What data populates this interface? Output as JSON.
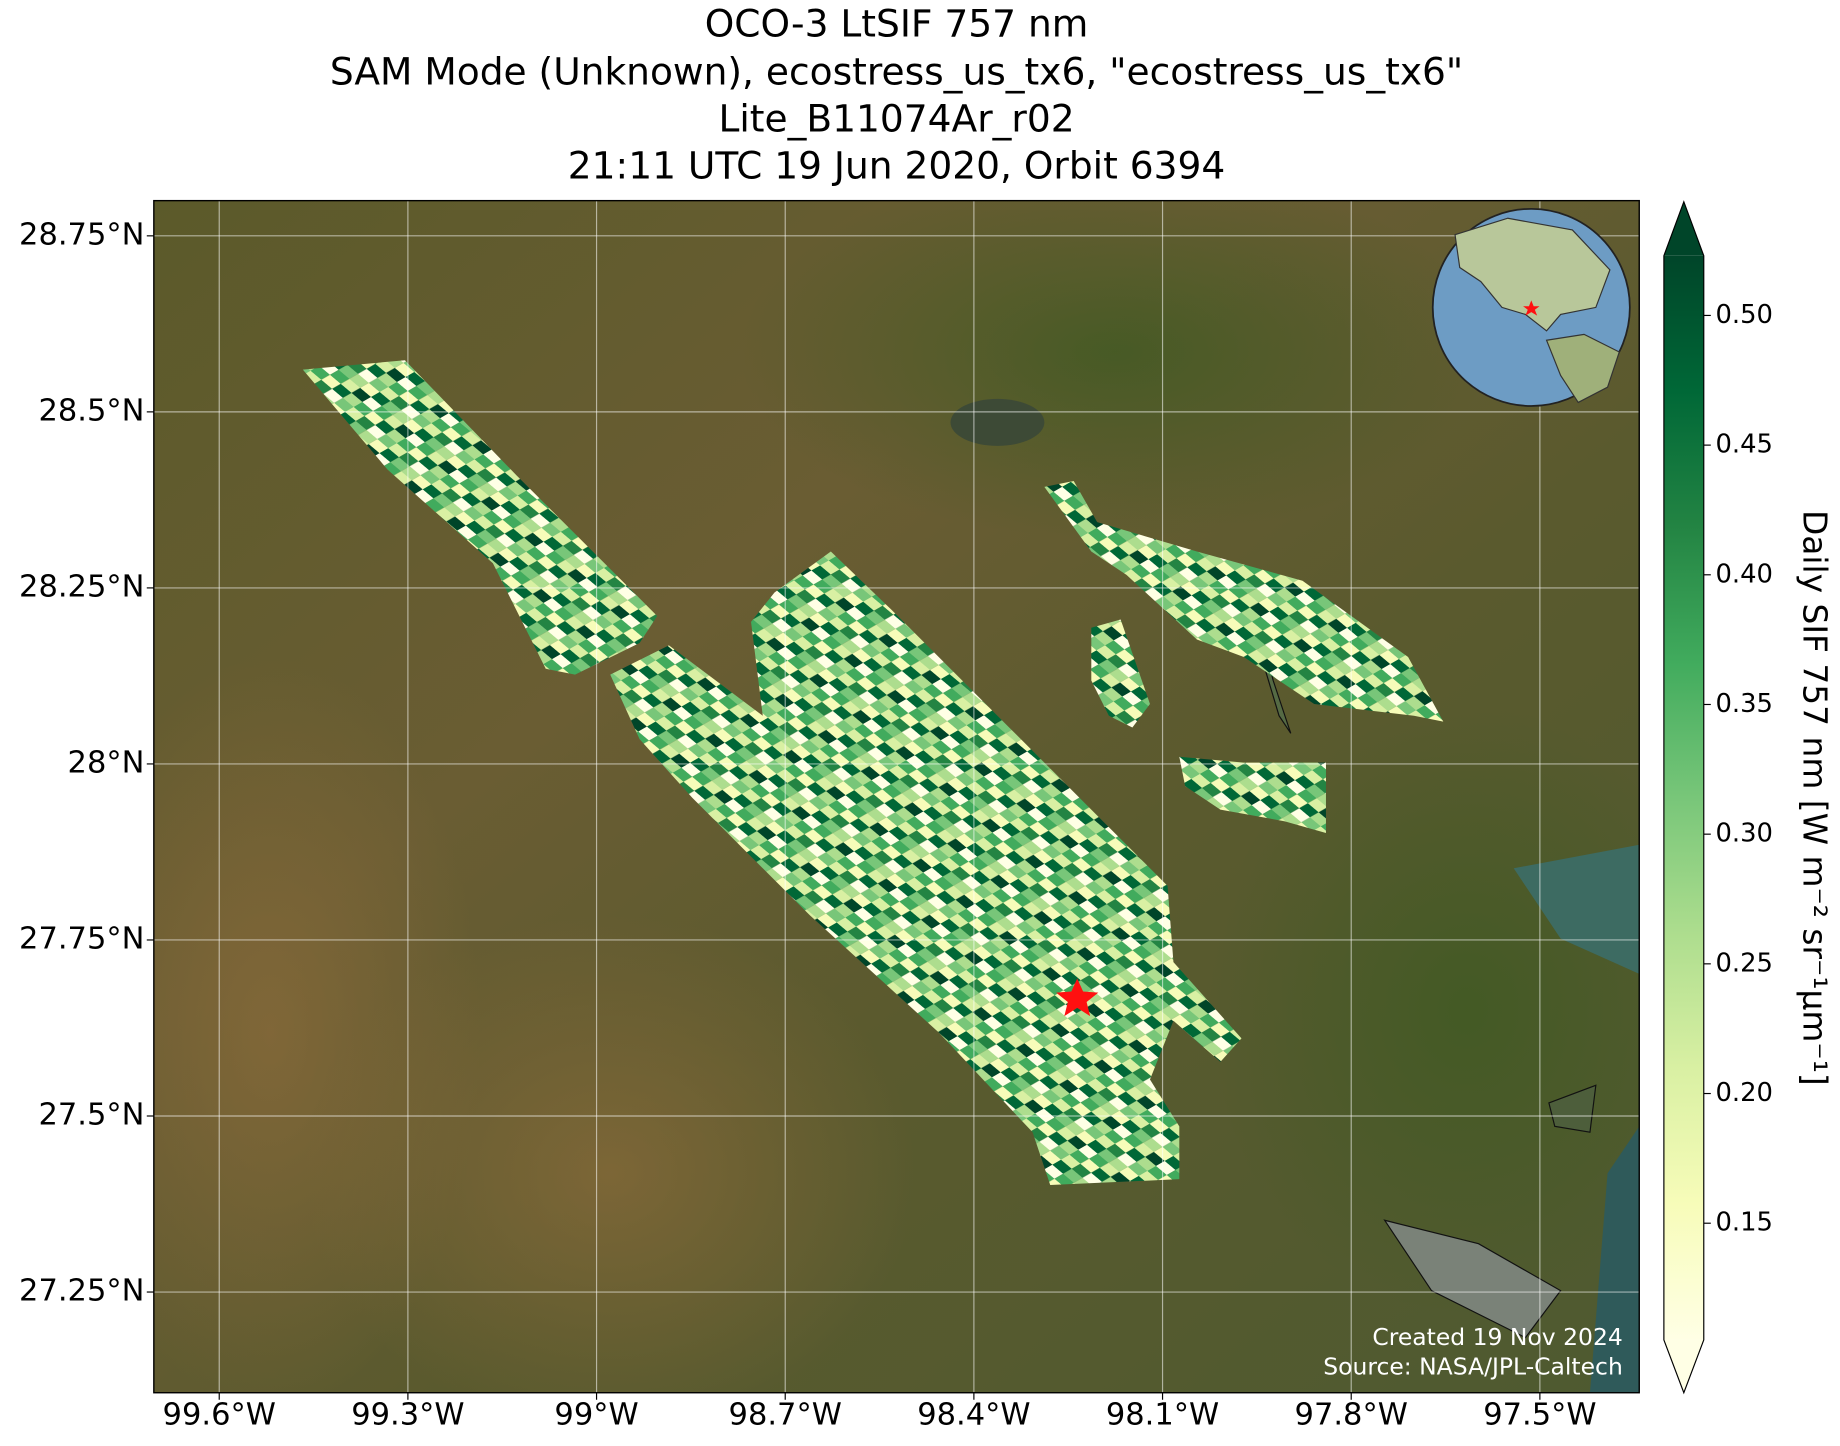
{
  "chart_data": {
    "type": "map",
    "title": [
      "OCO-3 LtSIF 757 nm",
      "SAM Mode (Unknown), ecostress_us_tx6, \"ecostress_us_tx6\"",
      "Lite_B11074Ar_r02",
      "21:11 UTC 19 Jun 2020, Orbit 6394"
    ],
    "xlim": [
      -99.704,
      -97.342
    ],
    "ylim": [
      27.107,
      28.8
    ],
    "xticks": [
      {
        "value": -99.6,
        "label": "99.6°W"
      },
      {
        "value": -99.3,
        "label": "99.3°W"
      },
      {
        "value": -99,
        "label": "99°W"
      },
      {
        "value": -98.7,
        "label": "98.7°W"
      },
      {
        "value": -98.4,
        "label": "98.4°W"
      },
      {
        "value": -98.1,
        "label": "98.1°W"
      },
      {
        "value": -97.8,
        "label": "97.8°W"
      },
      {
        "value": -97.5,
        "label": "97.5°W"
      }
    ],
    "yticks": [
      {
        "value": 28.75,
        "label": "28.75°N"
      },
      {
        "value": 28.5,
        "label": "28.5°N"
      },
      {
        "value": 28.25,
        "label": "28.25°N"
      },
      {
        "value": 28,
        "label": "28°N"
      },
      {
        "value": 27.75,
        "label": "27.75°N"
      },
      {
        "value": 27.5,
        "label": "27.5°N"
      },
      {
        "value": 27.25,
        "label": "27.25°N"
      }
    ],
    "grid": true,
    "colorbar": {
      "label": "Daily SIF 757 nm [W m⁻² sr⁻¹µm⁻¹]",
      "lim": [
        0.105,
        0.523
      ],
      "ticks": [
        {
          "value": 0.15,
          "label": "0.15"
        },
        {
          "value": 0.2,
          "label": "0.20"
        },
        {
          "value": 0.25,
          "label": "0.25"
        },
        {
          "value": 0.3,
          "label": "0.30"
        },
        {
          "value": 0.35,
          "label": "0.35"
        },
        {
          "value": 0.4,
          "label": "0.40"
        },
        {
          "value": 0.45,
          "label": "0.45"
        },
        {
          "value": 0.5,
          "label": "0.50"
        }
      ],
      "colormap": [
        "#ffffe5",
        "#f7fcb9",
        "#d9f0a3",
        "#addd8e",
        "#78c679",
        "#41ab5d",
        "#238443",
        "#006837",
        "#004529"
      ]
    },
    "annotations": [
      "Created 19 Nov 2024",
      "Source: NASA/JPL-Caltech"
    ]
  }
}
